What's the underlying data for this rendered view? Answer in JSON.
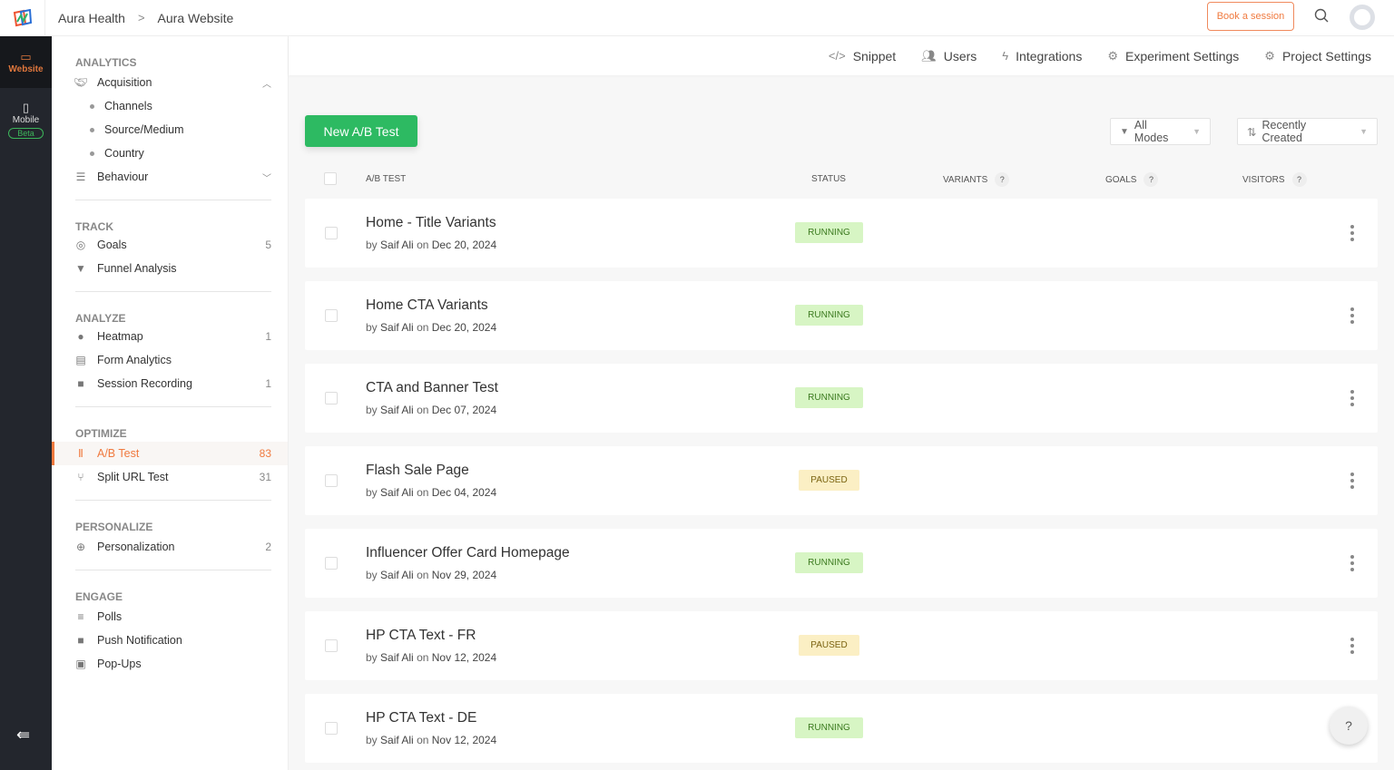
{
  "header": {
    "breadcrumb": [
      "Aura Health",
      "Aura Website"
    ],
    "book_label": "Book a session"
  },
  "rail": {
    "website": "Website",
    "mobile": "Mobile",
    "beta": "Beta"
  },
  "sidebar": {
    "analytics": "ANALYTICS",
    "acquisition": "Acquisition",
    "acq_sub": [
      "Channels",
      "Source/Medium",
      "Country"
    ],
    "behaviour": "Behaviour",
    "track": "TRACK",
    "goals": "Goals",
    "goals_count": "5",
    "funnel": "Funnel Analysis",
    "analyze": "ANALYZE",
    "heatmap": "Heatmap",
    "heatmap_count": "1",
    "form": "Form Analytics",
    "session": "Session Recording",
    "session_count": "1",
    "optimize": "OPTIMIZE",
    "ab": "A/B Test",
    "ab_count": "83",
    "split": "Split URL Test",
    "split_count": "31",
    "personalize": "PERSONALIZE",
    "personalization": "Personalization",
    "personalization_count": "2",
    "engage": "ENGAGE",
    "polls": "Polls",
    "push": "Push Notification",
    "popups": "Pop-Ups"
  },
  "subnav": [
    "Snippet",
    "Users",
    "Integrations",
    "Experiment Settings",
    "Project Settings"
  ],
  "toolbar": {
    "new_label": "New A/B Test",
    "mode_filter": "All Modes",
    "sort": "Recently Created"
  },
  "table": {
    "headers": {
      "test": "A/B TEST",
      "status": "STATUS",
      "variants": "VARIANTS",
      "goals": "GOALS",
      "visitors": "VISITORS"
    },
    "help": "?",
    "rows": [
      {
        "name": "Home - Title Variants",
        "by": "by",
        "author": "Saif Ali",
        "on": "on",
        "date": "Dec 20, 2024",
        "status": "RUNNING"
      },
      {
        "name": "Home CTA Variants",
        "by": "by",
        "author": "Saif Ali",
        "on": "on",
        "date": "Dec 20, 2024",
        "status": "RUNNING"
      },
      {
        "name": "CTA and Banner Test",
        "by": "by",
        "author": "Saif Ali",
        "on": "on",
        "date": "Dec 07, 2024",
        "status": "RUNNING"
      },
      {
        "name": "Flash Sale Page",
        "by": "by",
        "author": "Saif Ali",
        "on": "on",
        "date": "Dec 04, 2024",
        "status": "PAUSED"
      },
      {
        "name": "Influencer Offer Card Homepage",
        "by": "by",
        "author": "Saif Ali",
        "on": "on",
        "date": "Nov 29, 2024",
        "status": "RUNNING"
      },
      {
        "name": "HP CTA Text - FR",
        "by": "by",
        "author": "Saif Ali",
        "on": "on",
        "date": "Nov 12, 2024",
        "status": "PAUSED"
      },
      {
        "name": "HP CTA Text - DE",
        "by": "by",
        "author": "Saif Ali",
        "on": "on",
        "date": "Nov 12, 2024",
        "status": "RUNNING"
      }
    ]
  },
  "help_label": "?",
  "colors": {
    "accent": "#f07a3f",
    "primary": "#2dba62",
    "rail": "#23262d",
    "running_bg": "#d7f5c4",
    "paused_bg": "#fbefc4"
  }
}
